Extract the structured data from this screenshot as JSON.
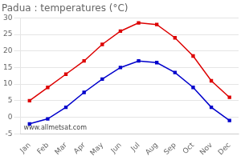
{
  "chart_data": {
    "type": "line",
    "title": "Padua : temperatures (°C)",
    "categories": [
      "Jan",
      "Feb",
      "Mar",
      "Apr",
      "May",
      "Jun",
      "Jul",
      "Aug",
      "Sep",
      "Oct",
      "Nov",
      "Dec"
    ],
    "series": [
      {
        "color": "#dd0000",
        "values": [
          5,
          9,
          13,
          17,
          22,
          26,
          28.5,
          28,
          24,
          18.5,
          11,
          6
        ]
      },
      {
        "color": "#0000cc",
        "values": [
          -2,
          -0.5,
          3,
          7.5,
          11.5,
          15,
          17,
          16.5,
          13.5,
          9,
          3,
          -1
        ]
      }
    ],
    "marker": "square",
    "ylim": [
      -5,
      30
    ],
    "yticks": [
      -5,
      0,
      5,
      10,
      15,
      20,
      25,
      30
    ],
    "grid": "y",
    "annotations": [
      "www.allmetsat.com"
    ]
  }
}
